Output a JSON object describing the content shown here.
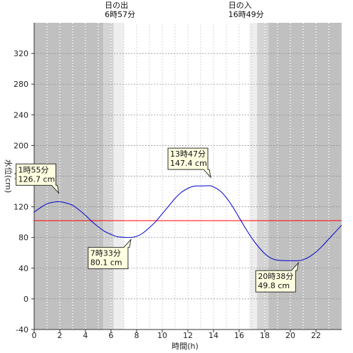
{
  "chart_data": {
    "type": "line",
    "xlabel": "時間(h)",
    "ylabel": "水位(cm)",
    "xlim": [
      0,
      24
    ],
    "ylim": [
      -40,
      360
    ],
    "x_ticks": [
      0,
      2,
      4,
      6,
      8,
      10,
      12,
      14,
      16,
      18,
      20,
      22
    ],
    "y_ticks": [
      -40,
      0,
      40,
      80,
      120,
      160,
      200,
      240,
      280,
      320
    ],
    "grid": true,
    "reference_line": {
      "value": 102,
      "color": "#ff0000"
    },
    "series": [
      {
        "color": "#0000cc",
        "x": [
          0,
          0.5,
          1,
          1.5,
          1.92,
          2.5,
          3,
          3.5,
          4,
          4.5,
          5,
          5.5,
          6,
          6.5,
          7,
          7.55,
          8,
          8.5,
          9,
          9.5,
          10,
          10.5,
          11,
          11.5,
          12,
          12.5,
          13,
          13.5,
          13.78,
          14,
          14.5,
          15,
          15.5,
          16,
          16.5,
          17,
          17.5,
          18,
          18.5,
          19,
          19.5,
          20,
          20.63,
          21,
          21.5,
          22,
          22.5,
          23,
          23.5,
          24
        ],
        "y": [
          113,
          119,
          124,
          126,
          126.7,
          125,
          122,
          116,
          109,
          101,
          94,
          88,
          84,
          81,
          80.3,
          80.1,
          81.5,
          86,
          93,
          101,
          111,
          121,
          131,
          139,
          144,
          147,
          147.2,
          147.5,
          147.4,
          146,
          141,
          132,
          120,
          106,
          92,
          79,
          68,
          59,
          53,
          50.5,
          49.9,
          49.8,
          49.8,
          51,
          55,
          61,
          69,
          78,
          87,
          96
        ]
      }
    ],
    "annotations": [
      {
        "label": "1時55分",
        "value": "126.7 cm",
        "x": 1.92,
        "y": 126.7
      },
      {
        "label": "7時33分",
        "value": "80.1 cm",
        "x": 7.55,
        "y": 80.1
      },
      {
        "label": "13時47分",
        "value": "147.4 cm",
        "x": 13.78,
        "y": 147.4
      },
      {
        "label": "20時38分",
        "value": "49.8 cm",
        "x": 20.63,
        "y": 49.8
      }
    ],
    "sunrise": {
      "label": "日の出",
      "time_text": "6時57分",
      "hour": 6.95
    },
    "sunset": {
      "label": "日の入",
      "time_text": "16時49分",
      "hour": 16.82
    },
    "background_bands": [
      {
        "from": 0,
        "to": 5.4,
        "color": "#c0c0c0"
      },
      {
        "from": 5.4,
        "to": 6.2,
        "color": "#d4d4d4"
      },
      {
        "from": 6.2,
        "to": 7.0,
        "color": "#eeeeee"
      },
      {
        "from": 7.0,
        "to": 16.8,
        "color": "#ffffff"
      },
      {
        "from": 16.8,
        "to": 17.4,
        "color": "#eeeeee"
      },
      {
        "from": 17.4,
        "to": 18.3,
        "color": "#d4d4d4"
      },
      {
        "from": 18.3,
        "to": 24,
        "color": "#c0c0c0"
      }
    ]
  }
}
